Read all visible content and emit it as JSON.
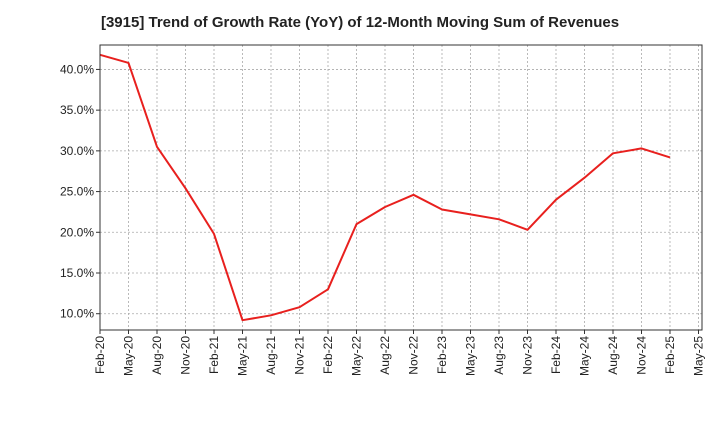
{
  "chart_data": {
    "type": "line",
    "title": "[3915]  Trend of Growth Rate (YoY) of 12-Month Moving Sum of Revenues",
    "xlabel": "",
    "ylabel": "",
    "x_tick_labels": [
      "Feb-20",
      "May-20",
      "Aug-20",
      "Nov-20",
      "Feb-21",
      "May-21",
      "Aug-21",
      "Nov-21",
      "Feb-22",
      "May-22",
      "Aug-22",
      "Nov-22",
      "Feb-23",
      "May-23",
      "Aug-23",
      "Nov-23",
      "Feb-24",
      "May-24",
      "Aug-24",
      "Nov-24",
      "Feb-25",
      "May-25"
    ],
    "y_tick_labels": [
      "10.0%",
      "15.0%",
      "20.0%",
      "25.0%",
      "30.0%",
      "35.0%",
      "40.0%"
    ],
    "y_ticks": [
      10,
      15,
      20,
      25,
      30,
      35,
      40
    ],
    "ylim": [
      8.0,
      43.0
    ],
    "grid": true,
    "series": [
      {
        "color": "#e8201e",
        "x": [
          "Feb-20",
          "May-20",
          "Aug-20",
          "Nov-20",
          "Feb-21",
          "May-21",
          "Aug-21",
          "Nov-21",
          "Feb-22",
          "May-22",
          "Aug-22",
          "Nov-22",
          "Feb-23",
          "May-23",
          "Aug-23",
          "Nov-23",
          "Feb-24",
          "May-24",
          "Aug-24",
          "Nov-24",
          "Feb-25"
        ],
        "values": [
          41.8,
          40.8,
          30.5,
          25.4,
          19.8,
          9.2,
          9.8,
          10.8,
          13.0,
          21.0,
          23.1,
          24.6,
          22.8,
          22.2,
          21.6,
          20.3,
          24.0,
          26.7,
          29.7,
          30.3,
          29.2
        ]
      }
    ]
  }
}
